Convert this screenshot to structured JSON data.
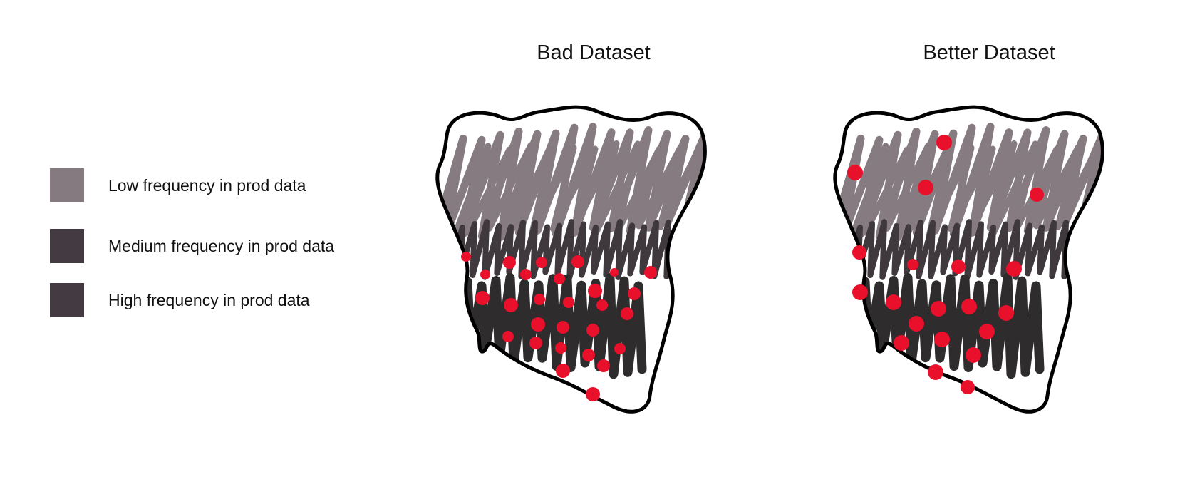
{
  "legend": {
    "items": [
      {
        "label": "Low frequency in prod data",
        "color": "#857a80"
      },
      {
        "label": "Medium frequency in prod data",
        "color": "#433b41"
      },
      {
        "label": "High frequency in prod data",
        "color": "#433b41"
      }
    ]
  },
  "panels": [
    {
      "title": "Bad Dataset",
      "sample_distribution": "concentrated in high and medium frequency regions"
    },
    {
      "title": "Better Dataset",
      "sample_distribution": "spread across low, medium and high frequency regions"
    }
  ],
  "colors": {
    "outline": "#000000",
    "low_scribble": "#867b81",
    "medium_scribble": "#3f383d",
    "high_scribble": "#2f2c2e",
    "sample_dot": "#e8102a"
  }
}
